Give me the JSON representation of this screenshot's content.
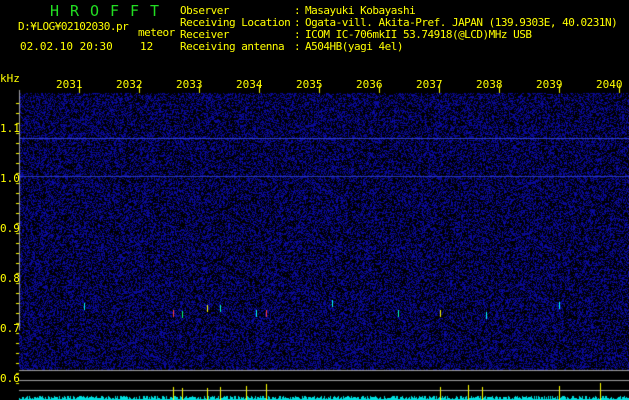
{
  "app_title_letters": [
    "H",
    "R",
    "O",
    "F",
    "F",
    "T"
  ],
  "file_path": "D:¥LOG¥02102030.pr",
  "mode": "meteor",
  "datetime": "02.02.10 20:30",
  "count": "12",
  "info": [
    {
      "label": "Observer",
      "value": "Masayuki Kobayashi"
    },
    {
      "label": "Receiving Location",
      "value": "Ogata-vill. Akita-Pref. JAPAN (139.9303E, 40.0231N)"
    },
    {
      "label": "Receiver",
      "value": "ICOM IC-706mkII 53.74918(@LCD)MHz USB"
    },
    {
      "label": "Receiving antenna",
      "value": "A504HB(yagi 4el)"
    }
  ],
  "y_unit": "kHz",
  "y_ticks": [
    "1.1",
    "1.0",
    "0.9",
    "0.8",
    "0.7",
    "0.6"
  ],
  "x_ticks": [
    "2031",
    "2032",
    "2033",
    "2034",
    "2035",
    "2036",
    "2037",
    "2038",
    "2039",
    "2040"
  ],
  "colors": {
    "text": "#ffff00",
    "title": "#22dd22",
    "background": "#000000",
    "noise": "#1a1a90",
    "histogram": "#00e0e0",
    "spike": "#ffff00",
    "guide": "#a0a0a0"
  }
}
